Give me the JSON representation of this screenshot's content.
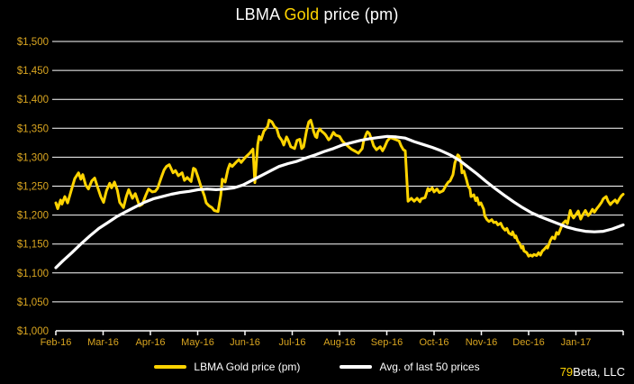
{
  "title": {
    "prefix": "LBMA ",
    "highlight": "Gold",
    "suffix": " price (pm)"
  },
  "colors": {
    "background": "#000000",
    "gold_line": "#FFD400",
    "avg_line": "#FFFFFF",
    "axis_label": "#D9A520",
    "grid": "#FFFFFF",
    "axis": "#FFFFFF",
    "text": "#FFFFFF"
  },
  "legend": [
    {
      "label": "LBMA Gold price (pm)",
      "color": "#FFD400"
    },
    {
      "label": "Avg. of last 50 prices",
      "color": "#FFFFFF"
    }
  ],
  "credit": {
    "prefix": "79",
    "suffix": "Beta, LLC"
  },
  "chart_data": {
    "type": "line",
    "title": "LBMA Gold price (pm)",
    "grid": true,
    "legend_position": "bottom-center",
    "ylim": [
      1000,
      1500
    ],
    "y_tick_values": [
      1500,
      1450,
      1400,
      1350,
      1300,
      1250,
      1200,
      1150,
      1100,
      1050,
      1000
    ],
    "y_tick_labels": [
      "$1,500",
      "$1,450",
      "$1,400",
      "$1,350",
      "$1,300",
      "$1,250",
      "$1,200",
      "$1,150",
      "$1,100",
      "$1,050",
      "$1,000"
    ],
    "x_tick_labels": [
      "Feb-16",
      "Mar-16",
      "Apr-16",
      "May-16",
      "Jun-16",
      "Jul-16",
      "Aug-16",
      "Sep-16",
      "Oct-16",
      "Nov-16",
      "Dec-16",
      "Jan-17"
    ],
    "x_unit": "months since Feb-2016 (0 to 12)",
    "series": [
      {
        "name": "LBMA Gold price (pm)",
        "color": "#FFD400",
        "stroke_width": 3,
        "points": [
          [
            0,
            1221
          ],
          [
            0.04,
            1211
          ],
          [
            0.1,
            1226
          ],
          [
            0.13,
            1219
          ],
          [
            0.19,
            1232
          ],
          [
            0.25,
            1221
          ],
          [
            0.32,
            1241
          ],
          [
            0.4,
            1263
          ],
          [
            0.48,
            1273
          ],
          [
            0.53,
            1262
          ],
          [
            0.57,
            1270
          ],
          [
            0.63,
            1252
          ],
          [
            0.69,
            1245
          ],
          [
            0.76,
            1259
          ],
          [
            0.82,
            1264
          ],
          [
            0.88,
            1249
          ],
          [
            0.95,
            1232
          ],
          [
            1.01,
            1222
          ],
          [
            1.07,
            1242
          ],
          [
            1.14,
            1255
          ],
          [
            1.18,
            1247
          ],
          [
            1.24,
            1257
          ],
          [
            1.3,
            1243
          ],
          [
            1.35,
            1222
          ],
          [
            1.43,
            1213
          ],
          [
            1.49,
            1232
          ],
          [
            1.54,
            1244
          ],
          [
            1.62,
            1229
          ],
          [
            1.68,
            1237
          ],
          [
            1.77,
            1216
          ],
          [
            1.83,
            1219
          ],
          [
            1.9,
            1234
          ],
          [
            1.96,
            1245
          ],
          [
            2.04,
            1240
          ],
          [
            2.1,
            1241
          ],
          [
            2.15,
            1246
          ],
          [
            2.23,
            1265
          ],
          [
            2.29,
            1278
          ],
          [
            2.34,
            1284
          ],
          [
            2.4,
            1287
          ],
          [
            2.48,
            1273
          ],
          [
            2.53,
            1277
          ],
          [
            2.59,
            1268
          ],
          [
            2.67,
            1273
          ],
          [
            2.72,
            1260
          ],
          [
            2.78,
            1265
          ],
          [
            2.86,
            1258
          ],
          [
            2.91,
            1281
          ],
          [
            2.95,
            1279
          ],
          [
            3.01,
            1265
          ],
          [
            3.07,
            1249
          ],
          [
            3.14,
            1234
          ],
          [
            3.18,
            1221
          ],
          [
            3.24,
            1216
          ],
          [
            3.3,
            1213
          ],
          [
            3.35,
            1208
          ],
          [
            3.43,
            1206
          ],
          [
            3.49,
            1235
          ],
          [
            3.52,
            1262
          ],
          [
            3.58,
            1257
          ],
          [
            3.64,
            1279
          ],
          [
            3.68,
            1288
          ],
          [
            3.73,
            1284
          ],
          [
            3.81,
            1291
          ],
          [
            3.87,
            1296
          ],
          [
            3.92,
            1291
          ],
          [
            4,
            1299
          ],
          [
            4.1,
            1307
          ],
          [
            4.17,
            1314
          ],
          [
            4.21,
            1256
          ],
          [
            4.27,
            1322
          ],
          [
            4.3,
            1336
          ],
          [
            4.34,
            1330
          ],
          [
            4.4,
            1345
          ],
          [
            4.48,
            1353
          ],
          [
            4.51,
            1364
          ],
          [
            4.57,
            1361
          ],
          [
            4.63,
            1352
          ],
          [
            4.67,
            1350
          ],
          [
            4.72,
            1336
          ],
          [
            4.78,
            1329
          ],
          [
            4.82,
            1321
          ],
          [
            4.88,
            1335
          ],
          [
            4.91,
            1330
          ],
          [
            4.97,
            1318
          ],
          [
            5.05,
            1315
          ],
          [
            5.1,
            1329
          ],
          [
            5.16,
            1331
          ],
          [
            5.2,
            1315
          ],
          [
            5.24,
            1318
          ],
          [
            5.3,
            1345
          ],
          [
            5.35,
            1361
          ],
          [
            5.39,
            1364
          ],
          [
            5.43,
            1353
          ],
          [
            5.45,
            1345
          ],
          [
            5.49,
            1336
          ],
          [
            5.52,
            1334
          ],
          [
            5.54,
            1343
          ],
          [
            5.58,
            1349
          ],
          [
            5.62,
            1345
          ],
          [
            5.68,
            1341
          ],
          [
            5.71,
            1338
          ],
          [
            5.77,
            1330
          ],
          [
            5.81,
            1333
          ],
          [
            5.87,
            1343
          ],
          [
            5.92,
            1338
          ],
          [
            6,
            1336
          ],
          [
            6.06,
            1328
          ],
          [
            6.11,
            1324
          ],
          [
            6.19,
            1318
          ],
          [
            6.25,
            1314
          ],
          [
            6.34,
            1310
          ],
          [
            6.4,
            1307
          ],
          [
            6.48,
            1315
          ],
          [
            6.51,
            1328
          ],
          [
            6.57,
            1341
          ],
          [
            6.59,
            1344
          ],
          [
            6.63,
            1341
          ],
          [
            6.69,
            1328
          ],
          [
            6.72,
            1320
          ],
          [
            6.78,
            1313
          ],
          [
            6.86,
            1318
          ],
          [
            6.91,
            1311
          ],
          [
            6.95,
            1317
          ],
          [
            7.01,
            1328
          ],
          [
            7.07,
            1334
          ],
          [
            7.14,
            1332
          ],
          [
            7.2,
            1330
          ],
          [
            7.26,
            1328
          ],
          [
            7.3,
            1320
          ],
          [
            7.35,
            1313
          ],
          [
            7.39,
            1311
          ],
          [
            7.43,
            1252
          ],
          [
            7.45,
            1224
          ],
          [
            7.52,
            1229
          ],
          [
            7.58,
            1224
          ],
          [
            7.64,
            1229
          ],
          [
            7.7,
            1223
          ],
          [
            7.73,
            1228
          ],
          [
            7.81,
            1230
          ],
          [
            7.87,
            1246
          ],
          [
            7.9,
            1242
          ],
          [
            7.96,
            1247
          ],
          [
            8,
            1240
          ],
          [
            8.06,
            1245
          ],
          [
            8.11,
            1239
          ],
          [
            8.19,
            1242
          ],
          [
            8.25,
            1251
          ],
          [
            8.3,
            1257
          ],
          [
            8.34,
            1259
          ],
          [
            8.4,
            1270
          ],
          [
            8.44,
            1290
          ],
          [
            8.5,
            1304
          ],
          [
            8.53,
            1302
          ],
          [
            8.57,
            1291
          ],
          [
            8.59,
            1273
          ],
          [
            8.63,
            1276
          ],
          [
            8.69,
            1260
          ],
          [
            8.72,
            1250
          ],
          [
            8.76,
            1245
          ],
          [
            8.78,
            1232
          ],
          [
            8.84,
            1235
          ],
          [
            8.88,
            1225
          ],
          [
            8.91,
            1230
          ],
          [
            8.95,
            1218
          ],
          [
            8.99,
            1221
          ],
          [
            9.05,
            1210
          ],
          [
            9.07,
            1199
          ],
          [
            9.12,
            1192
          ],
          [
            9.16,
            1189
          ],
          [
            9.22,
            1192
          ],
          [
            9.26,
            1187
          ],
          [
            9.31,
            1188
          ],
          [
            9.35,
            1183
          ],
          [
            9.41,
            1186
          ],
          [
            9.45,
            1179
          ],
          [
            9.5,
            1174
          ],
          [
            9.54,
            1177
          ],
          [
            9.58,
            1169
          ],
          [
            9.64,
            1166
          ],
          [
            9.66,
            1171
          ],
          [
            9.71,
            1161
          ],
          [
            9.73,
            1164
          ],
          [
            9.77,
            1155
          ],
          [
            9.81,
            1151
          ],
          [
            9.85,
            1143
          ],
          [
            9.88,
            1146
          ],
          [
            9.9,
            1138
          ],
          [
            9.96,
            1135
          ],
          [
            10,
            1129
          ],
          [
            10.04,
            1131
          ],
          [
            10.08,
            1129
          ],
          [
            10.11,
            1132
          ],
          [
            10.17,
            1130
          ],
          [
            10.21,
            1135
          ],
          [
            10.25,
            1131
          ],
          [
            10.29,
            1138
          ],
          [
            10.32,
            1140
          ],
          [
            10.38,
            1146
          ],
          [
            10.4,
            1143
          ],
          [
            10.46,
            1156
          ],
          [
            10.5,
            1162
          ],
          [
            10.55,
            1159
          ],
          [
            10.59,
            1170
          ],
          [
            10.63,
            1167
          ],
          [
            10.69,
            1179
          ],
          [
            10.72,
            1185
          ],
          [
            10.78,
            1190
          ],
          [
            10.82,
            1185
          ],
          [
            10.88,
            1208
          ],
          [
            10.91,
            1200
          ],
          [
            10.95,
            1195
          ],
          [
            11.01,
            1202
          ],
          [
            11.05,
            1207
          ],
          [
            11.1,
            1193
          ],
          [
            11.14,
            1200
          ],
          [
            11.2,
            1208
          ],
          [
            11.26,
            1199
          ],
          [
            11.3,
            1203
          ],
          [
            11.35,
            1210
          ],
          [
            11.39,
            1205
          ],
          [
            11.45,
            1212
          ],
          [
            11.49,
            1216
          ],
          [
            11.54,
            1222
          ],
          [
            11.58,
            1228
          ],
          [
            11.64,
            1232
          ],
          [
            11.68,
            1224
          ],
          [
            11.73,
            1218
          ],
          [
            11.77,
            1222
          ],
          [
            11.83,
            1226
          ],
          [
            11.87,
            1221
          ],
          [
            11.92,
            1228
          ],
          [
            11.96,
            1233
          ],
          [
            12,
            1236
          ]
        ]
      },
      {
        "name": "Avg. of last 50 prices",
        "color": "#FFFFFF",
        "stroke_width": 3.2,
        "points": [
          [
            0,
            1109
          ],
          [
            0.15,
            1121
          ],
          [
            0.34,
            1135
          ],
          [
            0.53,
            1150
          ],
          [
            0.72,
            1164
          ],
          [
            0.91,
            1177
          ],
          [
            1.1,
            1187
          ],
          [
            1.3,
            1198
          ],
          [
            1.49,
            1206
          ],
          [
            1.68,
            1214
          ],
          [
            1.87,
            1222
          ],
          [
            2.06,
            1228
          ],
          [
            2.25,
            1232
          ],
          [
            2.44,
            1236
          ],
          [
            2.63,
            1239
          ],
          [
            2.82,
            1241
          ],
          [
            3.01,
            1244
          ],
          [
            3.2,
            1245
          ],
          [
            3.39,
            1244
          ],
          [
            3.58,
            1245
          ],
          [
            3.77,
            1247
          ],
          [
            3.96,
            1252
          ],
          [
            4.15,
            1260
          ],
          [
            4.34,
            1268
          ],
          [
            4.53,
            1276
          ],
          [
            4.72,
            1284
          ],
          [
            4.91,
            1289
          ],
          [
            5.1,
            1293
          ],
          [
            5.3,
            1299
          ],
          [
            5.49,
            1304
          ],
          [
            5.68,
            1310
          ],
          [
            5.87,
            1315
          ],
          [
            6.06,
            1321
          ],
          [
            6.25,
            1325
          ],
          [
            6.44,
            1329
          ],
          [
            6.63,
            1332
          ],
          [
            6.82,
            1334
          ],
          [
            7.01,
            1336
          ],
          [
            7.2,
            1335
          ],
          [
            7.39,
            1333
          ],
          [
            7.58,
            1327
          ],
          [
            7.77,
            1322
          ],
          [
            7.96,
            1317
          ],
          [
            8.15,
            1311
          ],
          [
            8.34,
            1304
          ],
          [
            8.53,
            1295
          ],
          [
            8.72,
            1283
          ],
          [
            8.91,
            1271
          ],
          [
            9.1,
            1258
          ],
          [
            9.29,
            1246
          ],
          [
            9.49,
            1234
          ],
          [
            9.68,
            1223
          ],
          [
            9.87,
            1213
          ],
          [
            10.06,
            1204
          ],
          [
            10.25,
            1197
          ],
          [
            10.44,
            1191
          ],
          [
            10.63,
            1185
          ],
          [
            10.82,
            1179
          ],
          [
            11.01,
            1175
          ],
          [
            11.2,
            1172
          ],
          [
            11.39,
            1171
          ],
          [
            11.58,
            1172
          ],
          [
            11.77,
            1176
          ],
          [
            12,
            1183
          ]
        ]
      }
    ]
  }
}
